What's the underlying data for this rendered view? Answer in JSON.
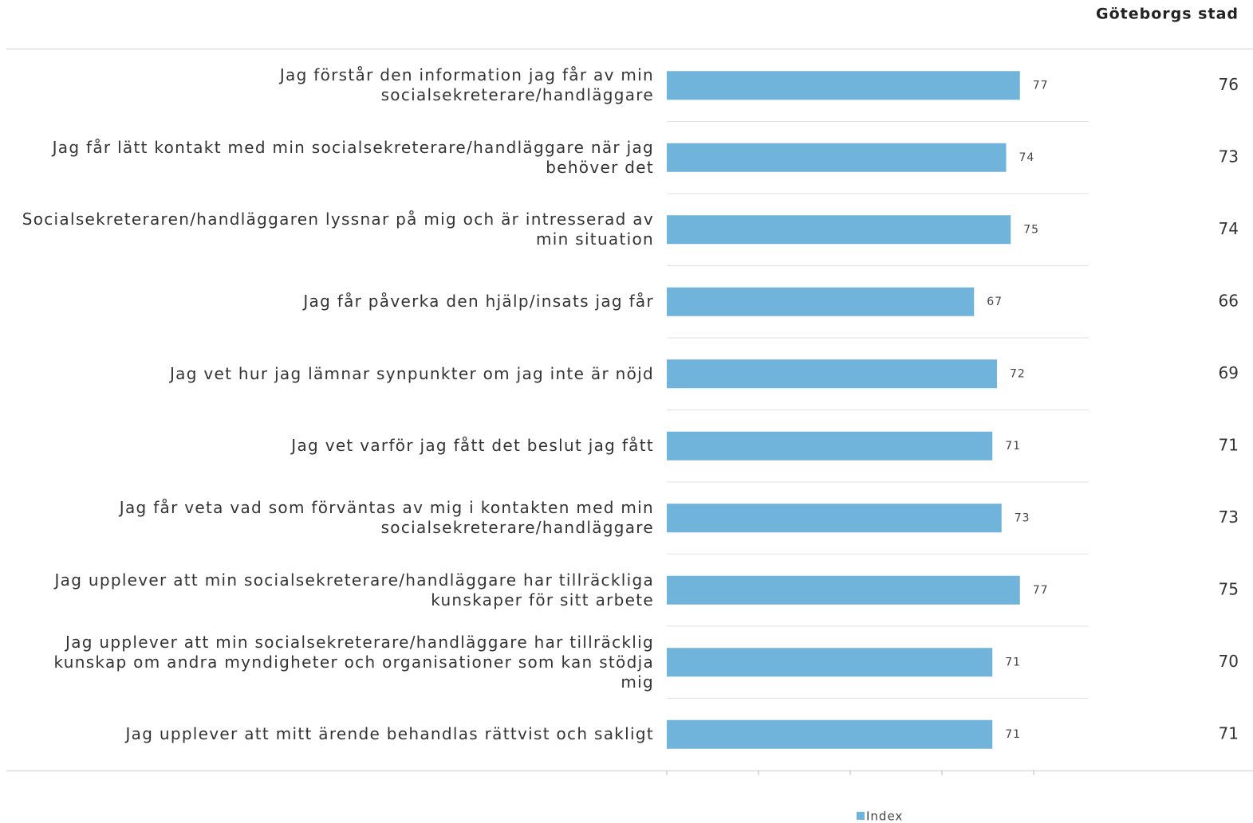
{
  "chart_data": {
    "type": "bar",
    "orientation": "horizontal",
    "categories": [
      "Jag förstår den information jag får av min socialsekreterare/handläggare",
      "Jag får lätt kontakt med min socialsekreterare/handläggare när jag behöver det",
      "Socialsekreteraren/handläggaren lyssnar på mig och är intresserad av min situation",
      "Jag får påverka den hjälp/insats jag får",
      "Jag vet hur jag lämnar synpunkter om jag inte är nöjd",
      "Jag vet varför jag fått det beslut jag fått",
      "Jag får veta vad som förväntas av mig i kontakten med min socialsekreterare/handläggare",
      "Jag upplever att min socialsekreterare/handläggare har tillräckliga kunskaper för sitt arbete",
      "Jag upplever att min socialsekreterare/handläggare har tillräcklig kunskap om andra myndigheter och organisationer som kan stödja mig",
      "Jag upplever att mitt ärende behandlas rättvist och sakligt"
    ],
    "series": [
      {
        "name": "Index",
        "color": "#70b4dc",
        "values": [
          77,
          74,
          75,
          67,
          72,
          71,
          73,
          77,
          71,
          71
        ]
      }
    ],
    "comparison": {
      "name": "Göteborgs stad",
      "values": [
        76,
        73,
        74,
        66,
        69,
        71,
        73,
        75,
        70,
        71
      ]
    },
    "xlim": [
      0,
      92
    ],
    "xticks": [
      0,
      20,
      40,
      60,
      80
    ],
    "legend": "bottom"
  }
}
